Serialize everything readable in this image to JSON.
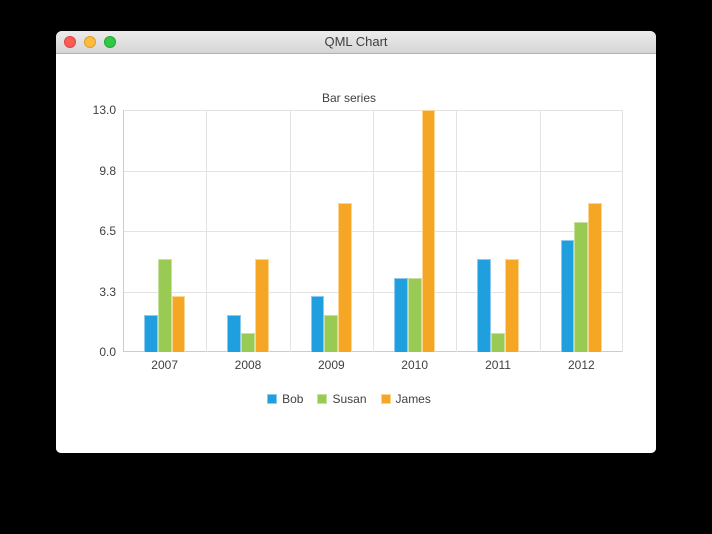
{
  "window": {
    "title": "QML Chart"
  },
  "colors": {
    "desktop_bg": "#000000",
    "window_bg": "#ffffff",
    "titlebar_top": "#ececec",
    "titlebar_bottom": "#d5d5d5",
    "text": "#404040",
    "gridline": "#e3e3e3",
    "traffic_red": "#fb5d54",
    "traffic_yellow": "#fdbc40",
    "traffic_green": "#33c748"
  },
  "chart_data": {
    "type": "bar",
    "title": "Bar series",
    "xlabel": "",
    "ylabel": "",
    "categories": [
      "2007",
      "2008",
      "2009",
      "2010",
      "2011",
      "2012"
    ],
    "series": [
      {
        "name": "Bob",
        "color": "#209fdf",
        "edge_color": "#8ecaee",
        "values": [
          2,
          2,
          3,
          4,
          5,
          6
        ]
      },
      {
        "name": "Susan",
        "color": "#99ca53",
        "edge_color": "#c6e2a0",
        "values": [
          5,
          1,
          2,
          4,
          1,
          7
        ]
      },
      {
        "name": "James",
        "color": "#f6a625",
        "edge_color": "#fad594",
        "values": [
          3,
          5,
          8,
          13,
          5,
          8
        ]
      }
    ],
    "ylim": [
      0,
      13
    ],
    "yticks": [
      "13.0",
      "9.8",
      "6.5",
      "3.3",
      "0.0"
    ],
    "grid": true,
    "legend_position": "bottom",
    "bar_group_width_ratio": 0.5
  }
}
